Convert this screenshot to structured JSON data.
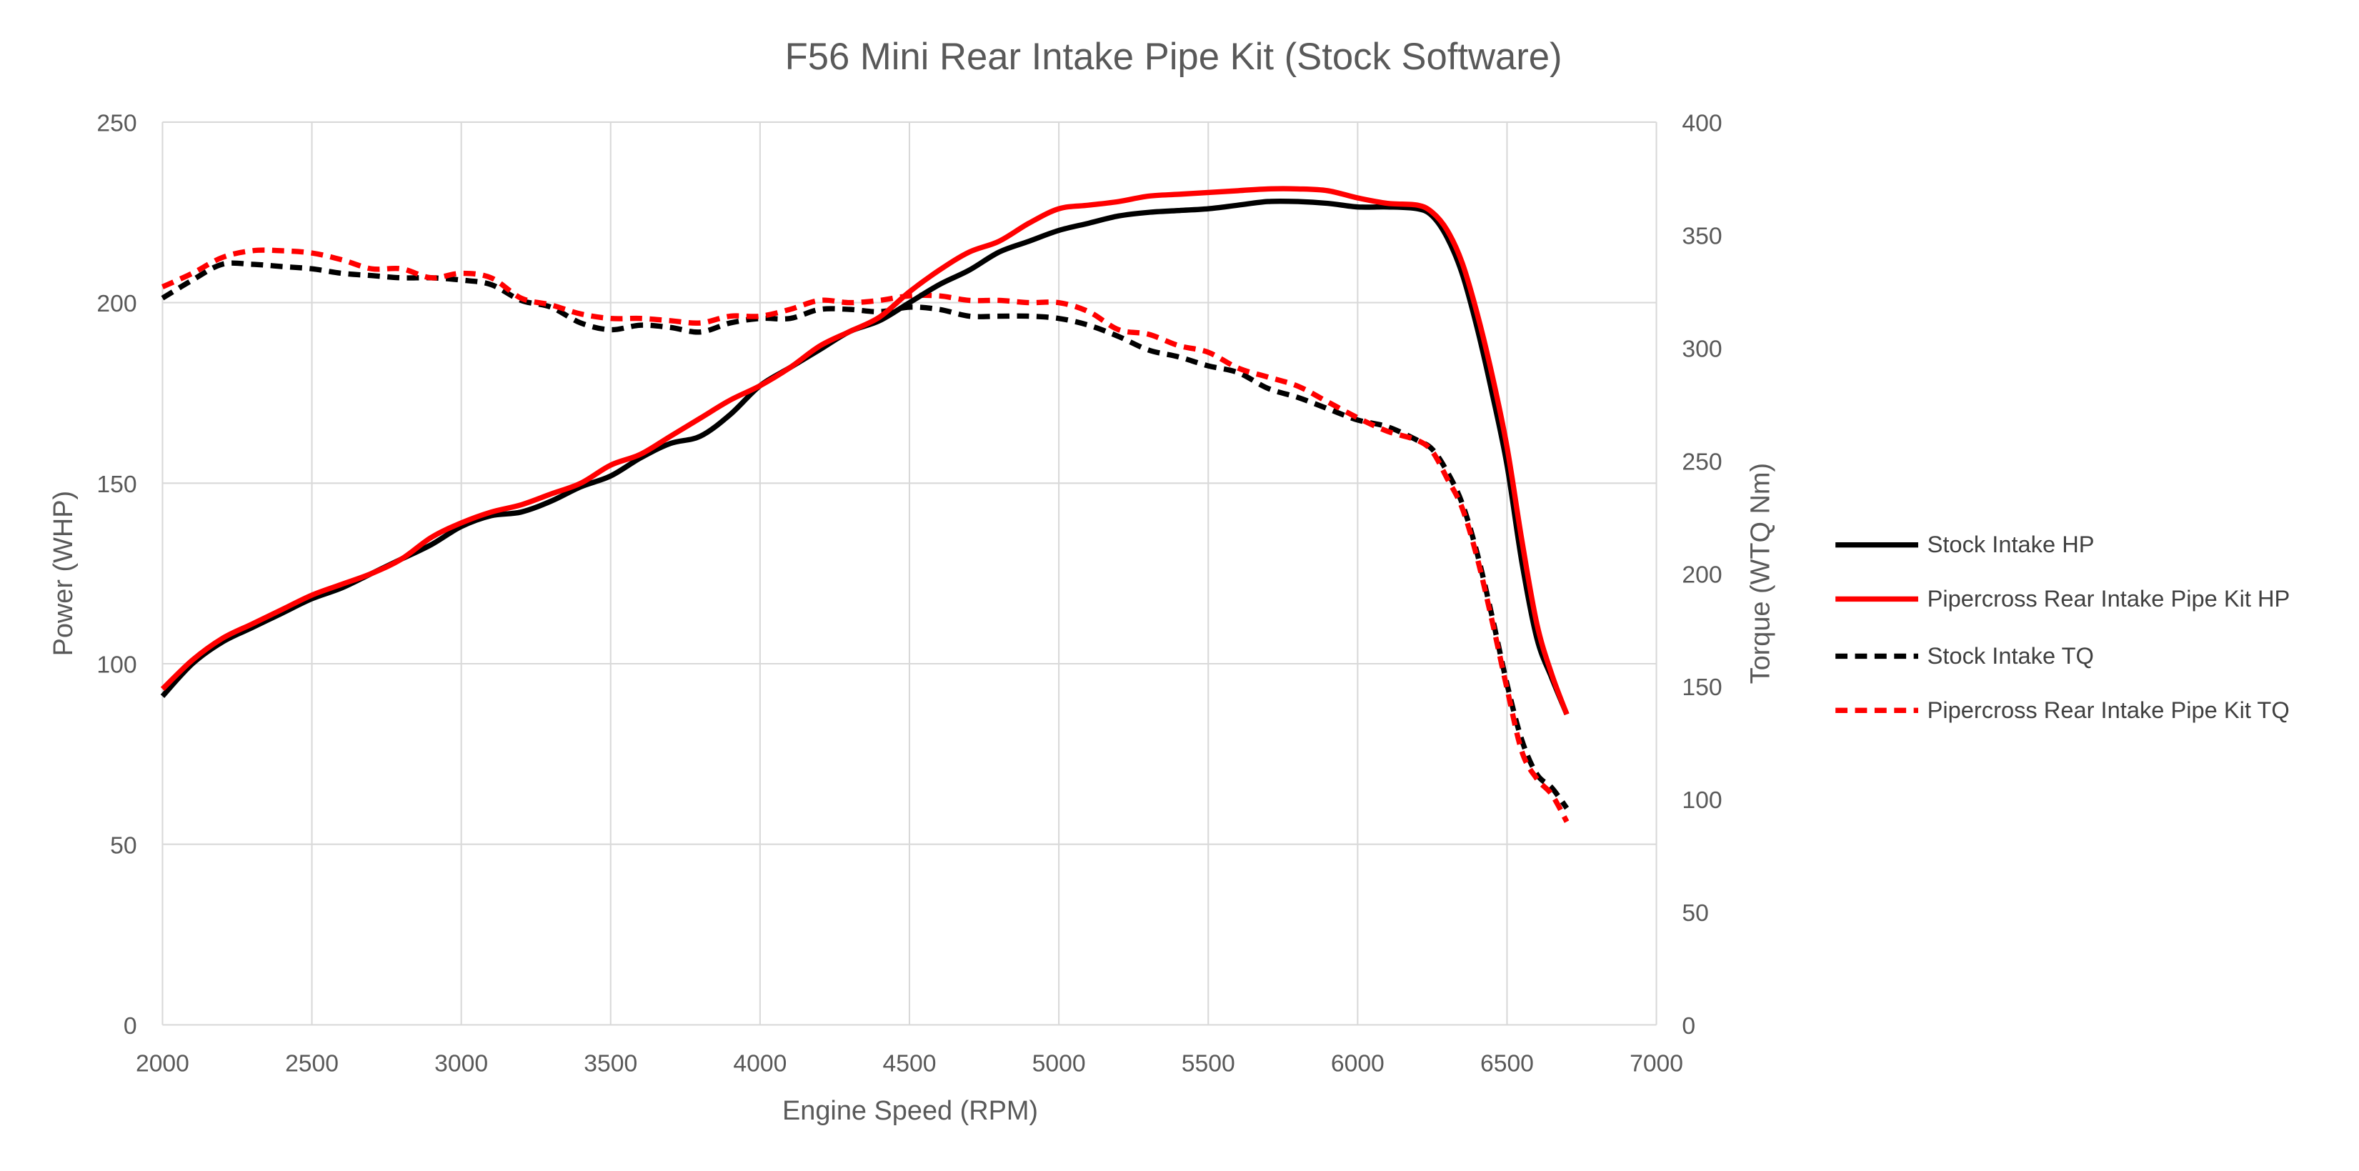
{
  "chart_data": {
    "type": "line",
    "title": "F56 Mini Rear Intake Pipe Kit (Stock Software)",
    "xlabel": "Engine Speed (RPM)",
    "ylabel": "Power (WHP)",
    "y2label": "Torque (WTQ Nm)",
    "xlim": [
      2000,
      7000
    ],
    "ylim": [
      0,
      250
    ],
    "y2lim": [
      0,
      400
    ],
    "xticks": [
      2000,
      2500,
      3000,
      3500,
      4000,
      4500,
      5000,
      5500,
      6000,
      6500,
      7000
    ],
    "yticks": [
      0,
      50,
      100,
      150,
      200,
      250
    ],
    "y2ticks": [
      0,
      50,
      100,
      150,
      200,
      250,
      300,
      350,
      400
    ],
    "grid": true,
    "legend_placement": "right",
    "series": [
      {
        "name": "Stock Intake HP",
        "axis": "left",
        "color": "#000000",
        "dash": false,
        "x": [
          2000,
          2100,
          2200,
          2300,
          2400,
          2500,
          2600,
          2700,
          2800,
          2900,
          3000,
          3100,
          3200,
          3300,
          3400,
          3500,
          3600,
          3700,
          3800,
          3900,
          4000,
          4100,
          4200,
          4300,
          4400,
          4500,
          4600,
          4700,
          4800,
          4900,
          5000,
          5100,
          5200,
          5300,
          5400,
          5500,
          5600,
          5700,
          5800,
          5900,
          6000,
          6100,
          6200,
          6250,
          6300,
          6350,
          6400,
          6450,
          6500,
          6550,
          6600,
          6650,
          6700
        ],
        "y": [
          91,
          100,
          106,
          110,
          114,
          118,
          121,
          125,
          129,
          133,
          138,
          141,
          142,
          145,
          149,
          152,
          157,
          161,
          163,
          169,
          177,
          182,
          187,
          192,
          195,
          200,
          205,
          209,
          214,
          217,
          220,
          222,
          224,
          225,
          225.5,
          226,
          227,
          228,
          228,
          227.5,
          226.5,
          226.5,
          226,
          224,
          218,
          208,
          193,
          175,
          155,
          128,
          107,
          96,
          86
        ]
      },
      {
        "name": "Pipercross Rear Intake Pipe Kit HP",
        "axis": "left",
        "color": "#FF0000",
        "dash": false,
        "x": [
          2000,
          2100,
          2200,
          2300,
          2400,
          2500,
          2600,
          2700,
          2800,
          2900,
          3000,
          3100,
          3200,
          3300,
          3400,
          3500,
          3600,
          3700,
          3800,
          3900,
          4000,
          4100,
          4200,
          4300,
          4400,
          4500,
          4600,
          4700,
          4800,
          4900,
          5000,
          5100,
          5200,
          5300,
          5400,
          5500,
          5600,
          5700,
          5800,
          5900,
          6000,
          6100,
          6200,
          6250,
          6300,
          6350,
          6400,
          6450,
          6500,
          6550,
          6600,
          6650,
          6700
        ],
        "y": [
          93,
          101,
          107,
          111,
          115,
          119,
          122,
          125,
          129,
          135,
          139,
          142,
          144,
          147,
          150,
          155,
          158,
          163,
          168,
          173,
          177,
          182,
          188,
          192,
          196,
          203,
          209,
          214,
          217,
          222,
          226,
          227,
          228,
          229.5,
          230,
          230.5,
          231,
          231.5,
          231.5,
          231,
          229,
          227.5,
          227,
          225,
          220,
          211,
          197,
          180,
          160,
          134,
          111,
          97,
          86
        ]
      },
      {
        "name": "Stock Intake TQ",
        "axis": "right",
        "color": "#000000",
        "dash": true,
        "x": [
          2000,
          2100,
          2200,
          2300,
          2400,
          2500,
          2600,
          2700,
          2800,
          2900,
          3000,
          3100,
          3200,
          3300,
          3400,
          3500,
          3600,
          3700,
          3800,
          3900,
          4000,
          4100,
          4200,
          4300,
          4400,
          4500,
          4600,
          4700,
          4800,
          4900,
          5000,
          5100,
          5200,
          5300,
          5400,
          5500,
          5600,
          5700,
          5800,
          5900,
          6000,
          6100,
          6200,
          6250,
          6300,
          6350,
          6400,
          6450,
          6500,
          6550,
          6600,
          6650,
          6700
        ],
        "y": [
          322,
          330,
          337,
          337,
          336,
          335,
          333,
          332,
          331,
          331,
          330,
          328,
          321,
          318,
          311,
          308,
          310,
          309,
          307,
          311,
          313,
          313,
          317,
          317,
          316,
          318,
          317,
          314,
          314,
          314,
          313,
          310,
          305,
          299,
          296,
          292,
          289,
          282,
          278,
          273,
          268,
          265,
          259,
          255,
          245,
          231,
          209,
          181,
          151,
          126,
          111,
          105,
          96
        ]
      },
      {
        "name": "Pipercross Rear Intake Pipe Kit TQ",
        "axis": "right",
        "color": "#FF0000",
        "dash": true,
        "x": [
          2000,
          2100,
          2200,
          2300,
          2400,
          2500,
          2600,
          2700,
          2800,
          2900,
          3000,
          3100,
          3200,
          3300,
          3400,
          3500,
          3600,
          3700,
          3800,
          3900,
          4000,
          4100,
          4200,
          4300,
          4400,
          4500,
          4600,
          4700,
          4800,
          4900,
          5000,
          5100,
          5200,
          5300,
          5400,
          5500,
          5600,
          5700,
          5800,
          5900,
          6000,
          6100,
          6200,
          6250,
          6300,
          6350,
          6400,
          6450,
          6500,
          6550,
          6600,
          6650,
          6700
        ],
        "y": [
          327,
          333,
          340,
          343,
          343,
          342,
          339,
          335,
          335,
          331,
          333,
          331,
          322,
          319,
          315,
          313,
          313,
          312,
          311,
          314,
          314,
          317,
          321,
          320,
          321,
          323,
          323,
          321,
          321,
          320,
          320,
          316,
          308,
          306,
          301,
          298,
          291,
          287,
          283,
          276,
          269,
          263,
          259,
          254,
          242,
          229,
          207,
          179,
          149,
          121,
          109,
          102,
          90
        ]
      }
    ]
  }
}
